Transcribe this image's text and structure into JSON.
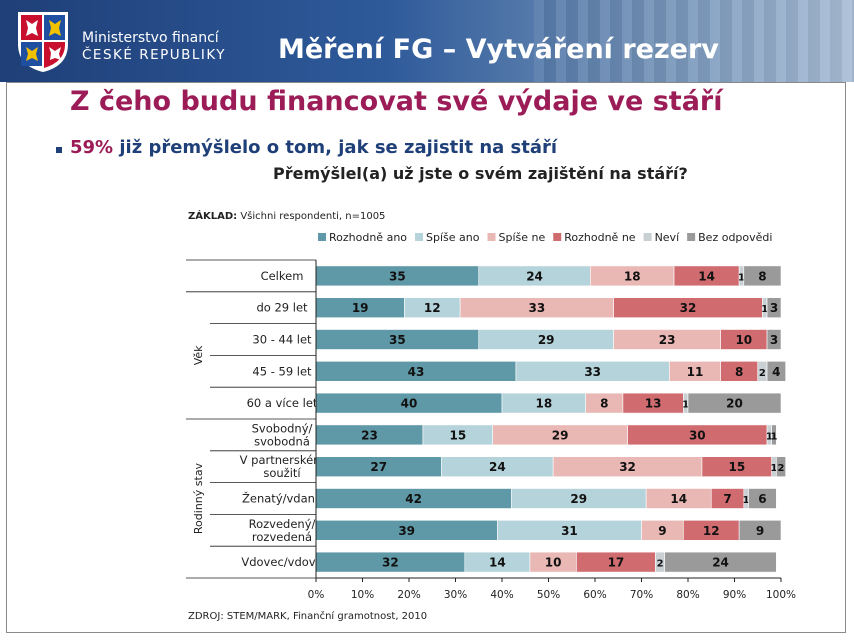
{
  "header": {
    "ministry_line1": "Ministerstvo financí",
    "ministry_line2": "ČESKÉ REPUBLIKY",
    "slide_title": "Měření FG – Vytváření rezerv"
  },
  "heading": "Z čeho budu financovat své výdaje ve stáří",
  "bullet": {
    "percent": "59%",
    "text": " již přemýšlelo o tom, jak se zajistit na stáří"
  },
  "question": "Přemýšlel(a) už jste o svém zajištění na stáří?",
  "basis": {
    "label": "ZÁKLAD:",
    "text": " Všichni respondenti, n=1005"
  },
  "source": "ZDROJ: STEM/MARK, Finanční gramotnost, 2010",
  "chart_data": {
    "type": "bar",
    "orientation": "horizontal",
    "stacked": true,
    "categories": [
      "Celkem",
      "do 29 let",
      "30 - 44 let",
      "45 - 59 let",
      "60 a více let",
      "Svobodný/ svobodná",
      "V partnerském soužití",
      "Ženatý/vdaná",
      "Rozvedený/ rozvedená",
      "Vdovec/vdova"
    ],
    "category_lines": [
      [
        "Celkem"
      ],
      [
        "do 29 let"
      ],
      [
        "30 - 44 let"
      ],
      [
        "45 - 59 let"
      ],
      [
        "60 a více let"
      ],
      [
        "Svobodný/",
        "svobodná"
      ],
      [
        "V partnerském",
        "soužití"
      ],
      [
        "Ženatý/vdaná"
      ],
      [
        "Rozvedený/",
        "rozvedená"
      ],
      [
        "Vdovec/vdova"
      ]
    ],
    "groups": [
      {
        "label": "Věk",
        "from": 1,
        "to": 4
      },
      {
        "label": "Rodinný stav",
        "from": 5,
        "to": 9
      }
    ],
    "series": [
      {
        "name": "Rozhodně ano",
        "color": "#5f98a6",
        "values": [
          35,
          19,
          35,
          43,
          40,
          23,
          27,
          42,
          39,
          32
        ]
      },
      {
        "name": "Spíše ano",
        "color": "#b5d3da",
        "values": [
          24,
          12,
          29,
          33,
          18,
          15,
          24,
          29,
          31,
          14
        ]
      },
      {
        "name": "Spíše ne",
        "color": "#e9b7b4",
        "values": [
          18,
          33,
          23,
          11,
          8,
          29,
          32,
          14,
          9,
          10
        ]
      },
      {
        "name": "Rozhodně ne",
        "color": "#d06c70",
        "values": [
          14,
          32,
          10,
          8,
          13,
          30,
          15,
          7,
          12,
          17
        ]
      },
      {
        "name": "Neví",
        "color": "#c8d0d4",
        "values": [
          1,
          1,
          0,
          2,
          1,
          1,
          1,
          1,
          0,
          2
        ]
      },
      {
        "name": "Bez odpovědi",
        "color": "#9a9a9a",
        "values": [
          8,
          3,
          3,
          4,
          20,
          1,
          2,
          6,
          9,
          24
        ]
      }
    ],
    "xlim": [
      0,
      100
    ],
    "xticks": [
      "0%",
      "10%",
      "20%",
      "30%",
      "40%",
      "50%",
      "60%",
      "70%",
      "80%",
      "90%",
      "100%"
    ],
    "legend_position": "top",
    "grid": false
  }
}
